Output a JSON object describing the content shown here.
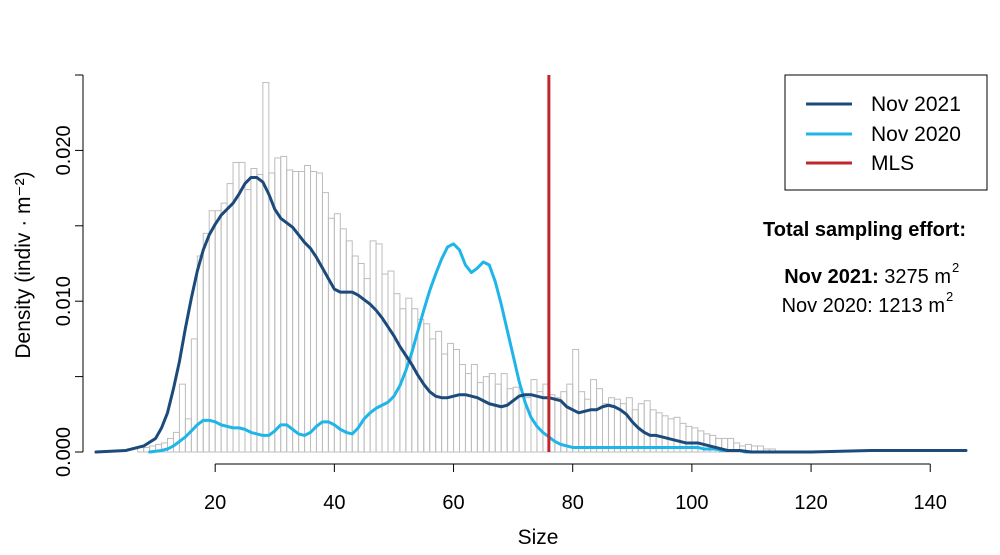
{
  "chart_data": {
    "type": "histogram-density",
    "xlabel": "Size",
    "ylabel": "Density (indiv · m⁻²)",
    "xlim": [
      0,
      146
    ],
    "ylim": [
      0,
      0.025
    ],
    "x_ticks": [
      "20",
      "40",
      "60",
      "80",
      "100",
      "120",
      "140"
    ],
    "x_tick_values": [
      20,
      40,
      60,
      80,
      100,
      120,
      140
    ],
    "y_ticks": [
      "0.000",
      "0.010",
      "0.020"
    ],
    "y_tick_values": [
      0.0,
      0.01,
      0.02
    ],
    "y_minor_tick_values": [
      0.005,
      0.015,
      0.025
    ],
    "histogram": {
      "bin_width": 1,
      "start": 7,
      "values": [
        0.0003,
        0.0003,
        0.0004,
        0.0005,
        0.0006,
        0.0009,
        0.0013,
        0.0045,
        0.0022,
        0.0075,
        0.013,
        0.0145,
        0.016,
        0.016,
        0.0165,
        0.0178,
        0.0192,
        0.0192,
        0.0174,
        0.0188,
        0.0184,
        0.0245,
        0.0185,
        0.0195,
        0.0196,
        0.0187,
        0.0186,
        0.0186,
        0.019,
        0.0186,
        0.0185,
        0.0172,
        0.0155,
        0.0158,
        0.0148,
        0.014,
        0.013,
        0.0125,
        0.0115,
        0.014,
        0.0138,
        0.0118,
        0.012,
        0.0105,
        0.0095,
        0.0102,
        0.0095,
        0.0088,
        0.0085,
        0.0075,
        0.008,
        0.0065,
        0.0072,
        0.0068,
        0.0058,
        0.0052,
        0.0058,
        0.0046,
        0.005,
        0.0052,
        0.0045,
        0.0052,
        0.0042,
        0.0043,
        0.0038,
        0.0036,
        0.0048,
        0.004,
        0.0045,
        0.0038,
        0.0036,
        0.004,
        0.0045,
        0.0068,
        0.004,
        0.0035,
        0.0048,
        0.0042,
        0.0032,
        0.0036,
        0.0035,
        0.0032,
        0.0036,
        0.0028,
        0.0032,
        0.0034,
        0.0028,
        0.0026,
        0.0024,
        0.0022,
        0.0023,
        0.0019,
        0.0017,
        0.0016,
        0.0014,
        0.0012,
        0.0011,
        0.0009,
        0.0009,
        0.0009,
        0.0006,
        0.0004,
        0.0005,
        0.0004,
        0.0004,
        0.0002,
        0.0002
      ]
    },
    "vertical_line": {
      "name": "MLS",
      "x": 76,
      "color": "#c0272d"
    },
    "series": [
      {
        "name": "Nov 2021",
        "color": "#1c4a7a",
        "x": [
          0,
          5,
          8,
          10,
          11,
          12,
          13,
          14,
          15,
          16,
          17,
          18,
          19,
          20,
          21,
          22,
          23,
          24,
          25,
          26,
          27,
          28,
          29,
          30,
          31,
          32,
          33,
          34,
          35,
          36,
          37,
          38,
          39,
          40,
          41,
          42,
          43,
          44,
          45,
          46,
          47,
          48,
          49,
          50,
          51,
          52,
          53,
          54,
          55,
          56,
          57,
          58,
          59,
          60,
          61,
          62,
          63,
          64,
          65,
          66,
          67,
          68,
          69,
          70,
          71,
          72,
          73,
          74,
          75,
          76,
          77,
          78,
          79,
          80,
          81,
          82,
          83,
          84,
          85,
          86,
          87,
          88,
          89,
          90,
          91,
          92,
          93,
          94,
          95,
          96,
          97,
          98,
          99,
          100,
          101,
          102,
          103,
          104,
          105,
          106,
          107,
          108,
          110,
          112,
          115,
          120,
          130,
          140,
          146
        ],
        "y": [
          0,
          0.0001,
          0.0004,
          0.0009,
          0.0016,
          0.0026,
          0.0042,
          0.006,
          0.0082,
          0.0102,
          0.012,
          0.0134,
          0.0144,
          0.0151,
          0.0157,
          0.0161,
          0.0165,
          0.0171,
          0.0178,
          0.0182,
          0.0182,
          0.0179,
          0.0171,
          0.0161,
          0.0155,
          0.0152,
          0.0149,
          0.0144,
          0.0139,
          0.0135,
          0.0129,
          0.0122,
          0.0115,
          0.0108,
          0.0106,
          0.0106,
          0.0106,
          0.0104,
          0.0101,
          0.0098,
          0.0094,
          0.0089,
          0.0083,
          0.0077,
          0.007,
          0.0064,
          0.0058,
          0.0051,
          0.0045,
          0.004,
          0.0037,
          0.0036,
          0.0036,
          0.0037,
          0.0038,
          0.0038,
          0.0037,
          0.0036,
          0.0034,
          0.0032,
          0.0031,
          0.003,
          0.0031,
          0.0034,
          0.0037,
          0.0038,
          0.0038,
          0.0037,
          0.0036,
          0.0036,
          0.0035,
          0.0034,
          0.003,
          0.0028,
          0.0026,
          0.0027,
          0.0028,
          0.0028,
          0.003,
          0.0031,
          0.003,
          0.0028,
          0.0025,
          0.002,
          0.0016,
          0.0013,
          0.0011,
          0.0011,
          0.001,
          0.0009,
          0.0008,
          0.0007,
          0.0006,
          0.0006,
          0.0006,
          0.0005,
          0.0004,
          0.0003,
          0.0002,
          0.0001,
          0.0001,
          0.0001,
          0,
          0,
          0,
          0,
          0.0001,
          0.0001,
          0.0001
        ]
      },
      {
        "name": "Nov 2020",
        "color": "#1fb5e8",
        "x": [
          9,
          11,
          12,
          13,
          14,
          15,
          16,
          17,
          18,
          19,
          20,
          21,
          22,
          23,
          24,
          25,
          26,
          27,
          28,
          29,
          30,
          31,
          32,
          33,
          34,
          35,
          36,
          37,
          38,
          39,
          40,
          41,
          42,
          43,
          44,
          45,
          46,
          47,
          48,
          49,
          50,
          51,
          52,
          53,
          54,
          55,
          56,
          57,
          58,
          59,
          60,
          61,
          62,
          63,
          64,
          65,
          66,
          67,
          68,
          69,
          70,
          71,
          72,
          73,
          74,
          75,
          76,
          77,
          78,
          79,
          80,
          81,
          82,
          83,
          84,
          85,
          86,
          87,
          88,
          89,
          90,
          91,
          92,
          93,
          94,
          95,
          96,
          97,
          98,
          99,
          100,
          101,
          102,
          103,
          104,
          105,
          106,
          107,
          108,
          109,
          110,
          111,
          112,
          113,
          114,
          115
        ],
        "y": [
          0,
          0.0001,
          0.0002,
          0.0004,
          0.0007,
          0.001,
          0.0014,
          0.0018,
          0.0021,
          0.0021,
          0.002,
          0.0018,
          0.0017,
          0.0016,
          0.0016,
          0.0015,
          0.0013,
          0.0012,
          0.0011,
          0.0011,
          0.0014,
          0.0018,
          0.0018,
          0.0015,
          0.0012,
          0.0011,
          0.0013,
          0.0017,
          0.002,
          0.002,
          0.0018,
          0.0015,
          0.0013,
          0.0012,
          0.0016,
          0.0022,
          0.0026,
          0.0029,
          0.0031,
          0.0033,
          0.0037,
          0.0044,
          0.0054,
          0.0066,
          0.008,
          0.0094,
          0.0107,
          0.0118,
          0.0128,
          0.0136,
          0.0138,
          0.0134,
          0.0124,
          0.0119,
          0.0122,
          0.0126,
          0.0124,
          0.0113,
          0.0098,
          0.0081,
          0.0064,
          0.0047,
          0.0033,
          0.0023,
          0.0017,
          0.0013,
          0.001,
          0.0007,
          0.0005,
          0.0004,
          0.0003,
          0.0003,
          0.0003,
          0.0003,
          0.0003,
          0.0003,
          0.0003,
          0.0003,
          0.0003,
          0.0003,
          0.0003,
          0.0003,
          0.0003,
          0.0003,
          0.0003,
          0.0003,
          0.0003,
          0.0003,
          0.0003,
          0.0003,
          0.0003,
          0.0003,
          0.0002,
          0.0002,
          0.0002,
          0.0001,
          0.0001,
          0.0001,
          0.0001,
          0,
          0,
          0,
          0,
          0,
          0,
          0
        ]
      }
    ],
    "legend": {
      "placement": "top-right",
      "entries": [
        {
          "label": "Nov 2021",
          "color": "#1c4a7a"
        },
        {
          "label": "Nov 2020",
          "color": "#1fb5e8"
        },
        {
          "label": "MLS",
          "color": "#c0272d"
        }
      ]
    },
    "annotations": {
      "effort_title": "Total sampling effort:",
      "line1_label": "Nov 2021:",
      "line1_value": " 3275 m",
      "line2_text": "Nov 2020: 1213 m",
      "exponent": "2"
    }
  }
}
